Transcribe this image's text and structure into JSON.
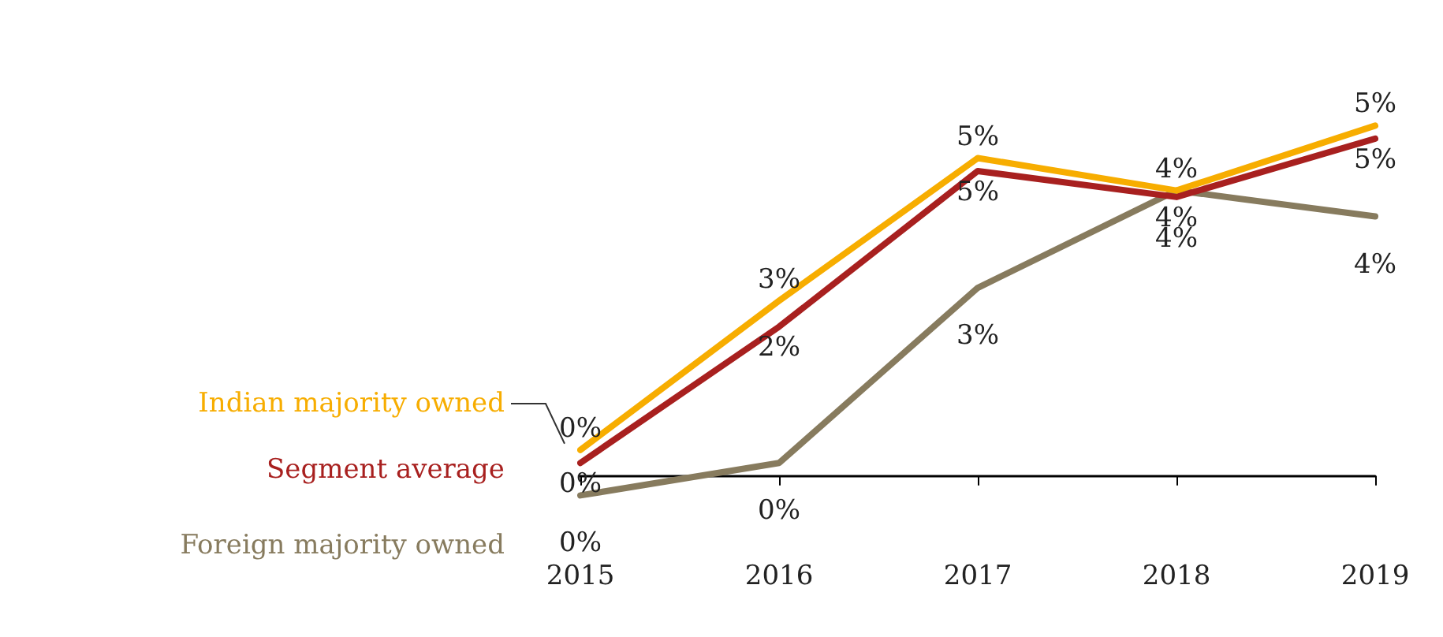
{
  "chart_data": {
    "type": "line",
    "categories": [
      "2015",
      "2016",
      "2017",
      "2018",
      "2019"
    ],
    "series": [
      {
        "name": "Indian majority owned",
        "color": "#f7ad00",
        "values": [
          0.4,
          2.7,
          4.9,
          4.4,
          5.4
        ],
        "value_labels": [
          "0%",
          "3%",
          "5%",
          "4%",
          "5%"
        ]
      },
      {
        "name": "Segment average",
        "color": "#a8201f",
        "values": [
          0.2,
          2.3,
          4.7,
          4.3,
          5.2
        ],
        "value_labels": [
          "0%",
          "2%",
          "5%",
          "4%",
          "5%"
        ]
      },
      {
        "name": "Foreign majority owned",
        "color": "#877b5e",
        "values": [
          -0.3,
          0.2,
          2.9,
          4.4,
          4.0
        ],
        "value_labels": [
          "0%",
          "0%",
          "3%",
          "4%",
          "4%"
        ]
      }
    ],
    "legend": false,
    "grid": false,
    "marker": "none",
    "line_style": "solid",
    "tick_labels": "x"
  }
}
